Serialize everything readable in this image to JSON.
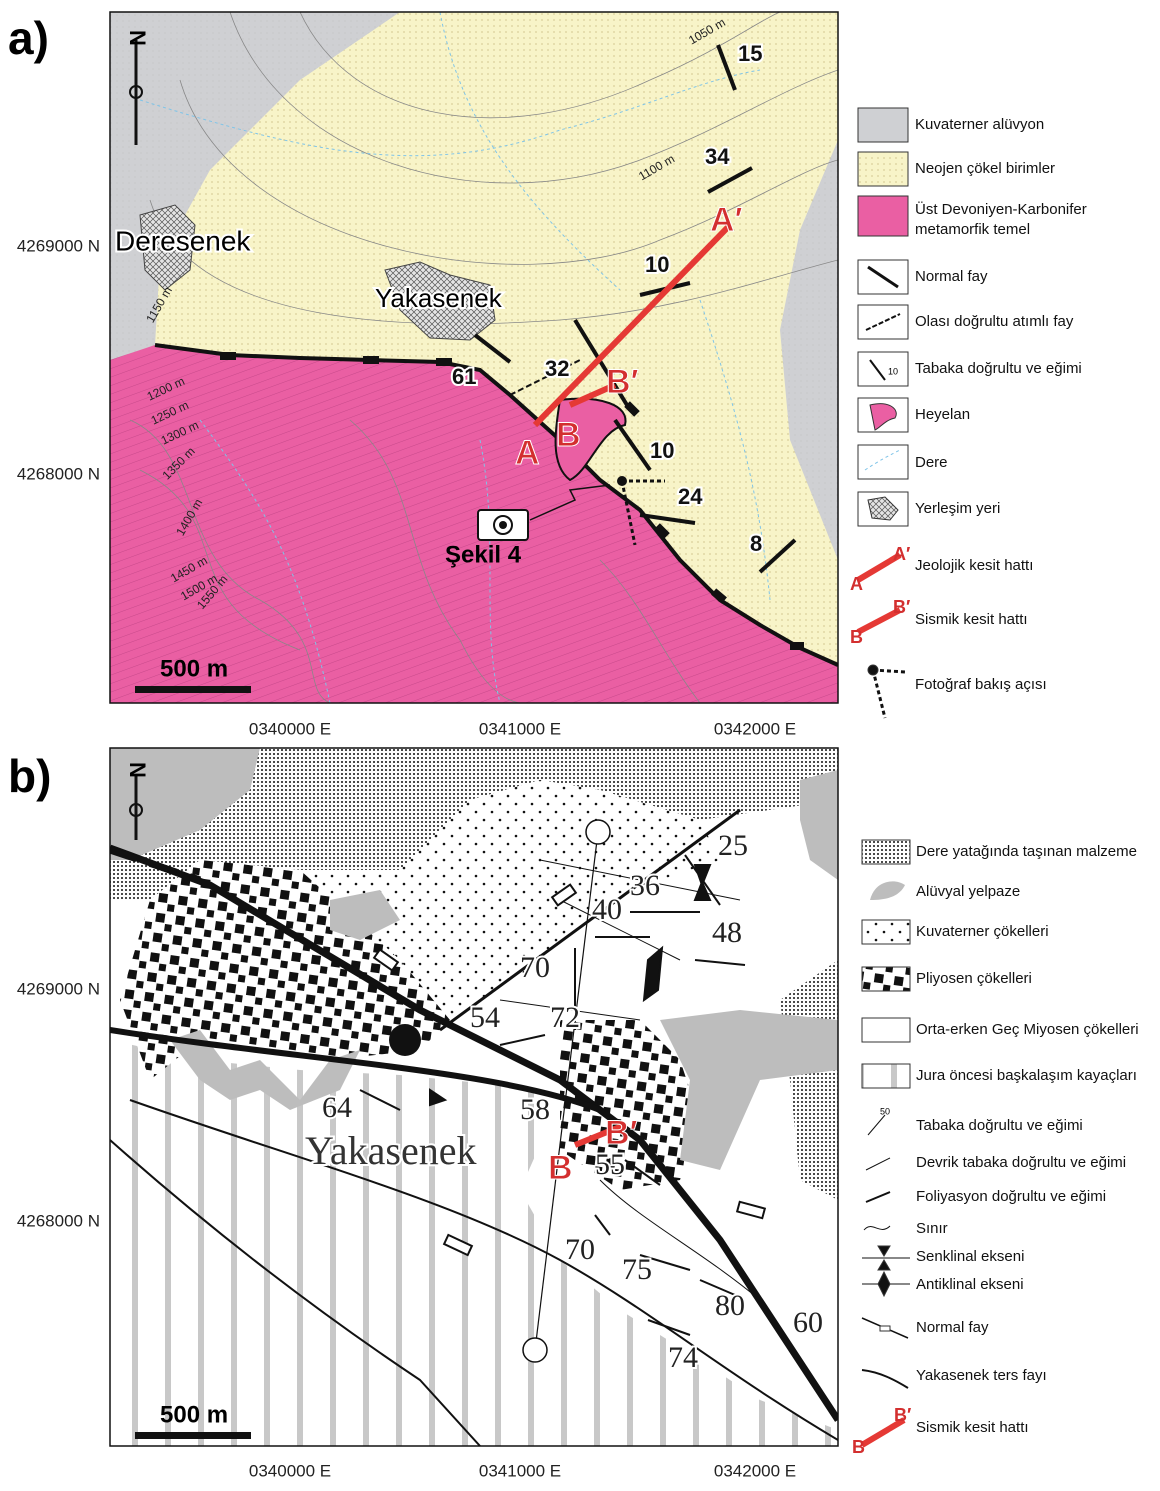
{
  "panel_a": {
    "label": "a)",
    "north": "N",
    "places": [
      "Deresenek",
      "Yakasenek"
    ],
    "contours": [
      "1050 m",
      "1100 m",
      "1150 m",
      "1200 m",
      "1250 m",
      "1300 m",
      "1350 m",
      "1400 m",
      "1450 m",
      "1500 m",
      "1550 m"
    ],
    "dips": [
      15,
      34,
      10,
      32,
      61,
      10,
      24,
      8
    ],
    "sections": [
      "A",
      "A′",
      "B",
      "B′"
    ],
    "photo_label": "Şekil 4",
    "scale": "500 m",
    "y_labels": [
      "4269000 N",
      "4268000 N"
    ],
    "x_labels": [
      "0340000 E",
      "0341000 E",
      "0342000 E"
    ],
    "legend": [
      "Kuvaterner alüvyon",
      "Neojen çökel birimler",
      "Üst Devoniyen-Karbonifer metamorfik temel",
      "Normal fay",
      "Olası doğrultu atımlı fay",
      "Tabaka doğrultu ve eğimi",
      "Heyelan",
      "Dere",
      "Yerleşim yeri",
      "Jeolojik kesit hattı",
      "Sismik kesit hattı",
      "Fotoğraf bakış açısı"
    ],
    "legend_symbols": {
      "dip": "10",
      "a_start": "A",
      "a_end": "A′",
      "b_start": "B",
      "b_end": "B′"
    }
  },
  "panel_b": {
    "label": "b)",
    "north": "N",
    "place": "Yakasenek",
    "dips": [
      25,
      36,
      40,
      48,
      70,
      72,
      54,
      64,
      58,
      55,
      70,
      75,
      80,
      60,
      74
    ],
    "sections": [
      "B",
      "B′"
    ],
    "scale": "500 m",
    "y_labels": [
      "4269000 N",
      "4268000 N"
    ],
    "x_labels": [
      "0340000 E",
      "0341000 E",
      "0342000 E"
    ],
    "legend": [
      "Dere yatağında taşınan malzeme",
      "Alüvyal yelpaze",
      "Kuvaterner çökelleri",
      "Pliyosen çökelleri",
      "Orta-erken Geç Miyosen çökelleri",
      "Jura öncesi başkalaşım kayaçları",
      "Tabaka doğrultu ve eğimi",
      "Devrik tabaka doğrultu ve eğimi",
      "Foliyasyon doğrultu ve eğimi",
      "Sınır",
      "Senklinal ekseni",
      "Antiklinal ekseni",
      "Normal fay",
      "Yakasenek ters fayı",
      "Sismik kesit hattı"
    ],
    "legend_symbols": {
      "dip": "50",
      "b_start": "B",
      "b_end": "B′"
    }
  }
}
